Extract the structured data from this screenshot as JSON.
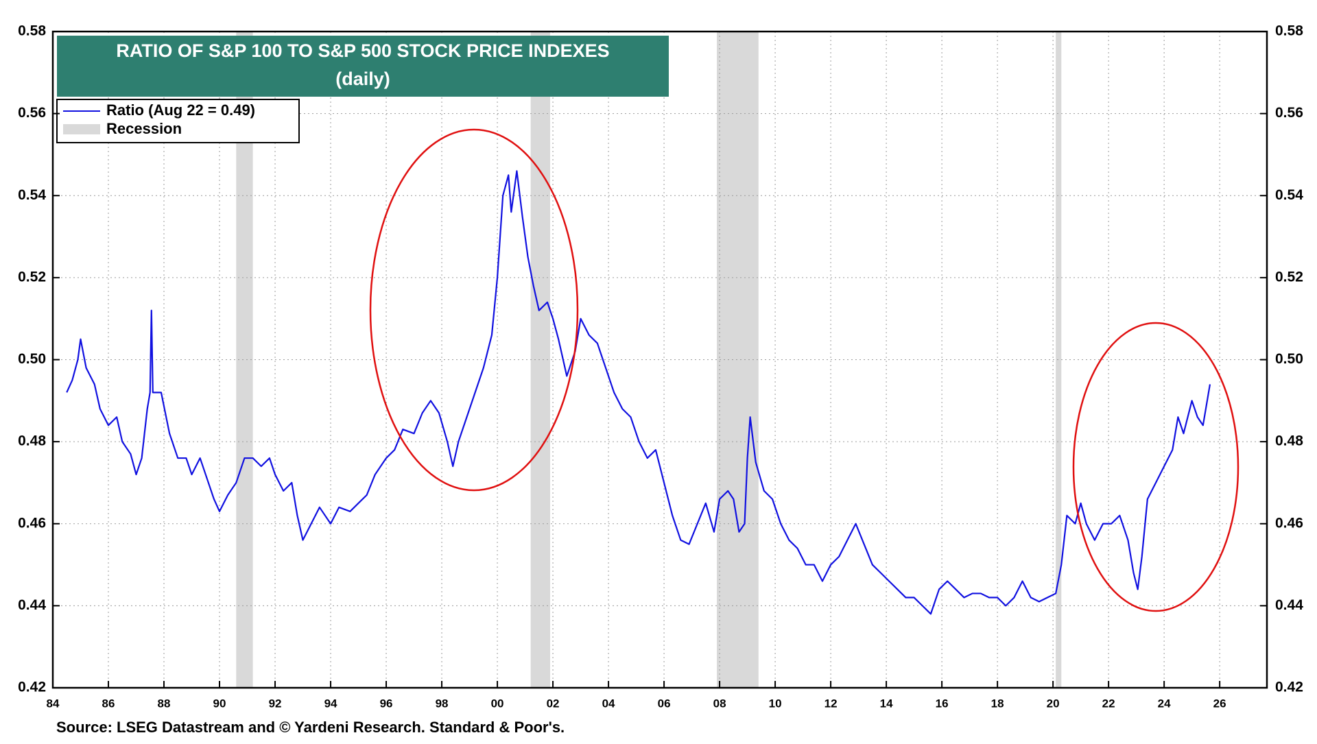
{
  "chart_data": {
    "type": "line",
    "title": "RATIO OF S&P 100 TO S&P 500 STOCK PRICE INDEXES",
    "subtitle": "(daily)",
    "source": "Source: LSEG Datastream and © Yardeni Research. Standard & Poor's.",
    "x": [
      1984.5,
      1984.7,
      1984.9,
      1985.0,
      1985.2,
      1985.5,
      1985.7,
      1986.0,
      1986.3,
      1986.5,
      1986.8,
      1987.0,
      1987.2,
      1987.4,
      1987.5,
      1987.55,
      1987.6,
      1987.9,
      1988.2,
      1988.5,
      1988.8,
      1989.0,
      1989.3,
      1989.6,
      1989.8,
      1990.0,
      1990.3,
      1990.6,
      1990.9,
      1991.2,
      1991.5,
      1991.8,
      1992.0,
      1992.3,
      1992.6,
      1992.8,
      1993.0,
      1993.3,
      1993.6,
      1994.0,
      1994.3,
      1994.7,
      1995.0,
      1995.3,
      1995.6,
      1996.0,
      1996.3,
      1996.6,
      1997.0,
      1997.3,
      1997.6,
      1997.9,
      1998.2,
      1998.4,
      1998.6,
      1998.9,
      1999.2,
      1999.5,
      1999.8,
      2000.0,
      2000.2,
      2000.4,
      2000.5,
      2000.7,
      2000.9,
      2001.1,
      2001.3,
      2001.5,
      2001.8,
      2002.0,
      2002.2,
      2002.5,
      2002.8,
      2003.0,
      2003.3,
      2003.6,
      2003.9,
      2004.2,
      2004.5,
      2004.8,
      2005.1,
      2005.4,
      2005.7,
      2006.0,
      2006.3,
      2006.6,
      2006.9,
      2007.2,
      2007.5,
      2007.8,
      2008.0,
      2008.3,
      2008.5,
      2008.7,
      2008.9,
      2009.0,
      2009.1,
      2009.3,
      2009.6,
      2009.9,
      2010.2,
      2010.5,
      2010.8,
      2011.1,
      2011.4,
      2011.7,
      2012.0,
      2012.3,
      2012.6,
      2012.9,
      2013.2,
      2013.5,
      2013.8,
      2014.1,
      2014.4,
      2014.7,
      2015.0,
      2015.3,
      2015.6,
      2015.9,
      2016.2,
      2016.5,
      2016.8,
      2017.1,
      2017.4,
      2017.7,
      2018.0,
      2018.3,
      2018.6,
      2018.9,
      2019.2,
      2019.5,
      2019.8,
      2020.1,
      2020.3,
      2020.5,
      2020.8,
      2021.0,
      2021.2,
      2021.5,
      2021.8,
      2022.1,
      2022.4,
      2022.7,
      2022.9,
      2023.05,
      2023.2,
      2023.4,
      2023.7,
      2024.0,
      2024.3,
      2024.5,
      2024.7,
      2025.0,
      2025.2,
      2025.4,
      2025.65
    ],
    "series": [
      {
        "name": "Ratio (Aug 22 = 0.49)",
        "color": "#1010e0",
        "values": [
          0.492,
          0.495,
          0.5,
          0.505,
          0.498,
          0.494,
          0.488,
          0.484,
          0.486,
          0.48,
          0.477,
          0.472,
          0.476,
          0.488,
          0.492,
          0.512,
          0.492,
          0.492,
          0.482,
          0.476,
          0.476,
          0.472,
          0.476,
          0.47,
          0.466,
          0.463,
          0.467,
          0.47,
          0.476,
          0.476,
          0.474,
          0.476,
          0.472,
          0.468,
          0.47,
          0.462,
          0.456,
          0.46,
          0.464,
          0.46,
          0.464,
          0.463,
          0.465,
          0.467,
          0.472,
          0.476,
          0.478,
          0.483,
          0.482,
          0.487,
          0.49,
          0.487,
          0.48,
          0.474,
          0.48,
          0.486,
          0.492,
          0.498,
          0.506,
          0.52,
          0.54,
          0.545,
          0.536,
          0.546,
          0.535,
          0.525,
          0.518,
          0.512,
          0.514,
          0.51,
          0.505,
          0.496,
          0.502,
          0.51,
          0.506,
          0.504,
          0.498,
          0.492,
          0.488,
          0.486,
          0.48,
          0.476,
          0.478,
          0.47,
          0.462,
          0.456,
          0.455,
          0.46,
          0.465,
          0.458,
          0.466,
          0.468,
          0.466,
          0.458,
          0.46,
          0.476,
          0.486,
          0.475,
          0.468,
          0.466,
          0.46,
          0.456,
          0.454,
          0.45,
          0.45,
          0.446,
          0.45,
          0.452,
          0.456,
          0.46,
          0.455,
          0.45,
          0.448,
          0.446,
          0.444,
          0.442,
          0.442,
          0.44,
          0.438,
          0.444,
          0.446,
          0.444,
          0.442,
          0.443,
          0.443,
          0.442,
          0.442,
          0.44,
          0.442,
          0.446,
          0.442,
          0.441,
          0.442,
          0.443,
          0.45,
          0.462,
          0.46,
          0.465,
          0.46,
          0.456,
          0.46,
          0.46,
          0.462,
          0.456,
          0.448,
          0.444,
          0.452,
          0.466,
          0.47,
          0.474,
          0.478,
          0.486,
          0.482,
          0.49,
          0.486,
          0.484,
          0.494
        ]
      }
    ],
    "recession_name": "Recession",
    "recession_color": "#d9d9d9",
    "recessions": [
      [
        1990.6,
        1991.2
      ],
      [
        2001.2,
        2001.9
      ],
      [
        2007.9,
        2009.4
      ],
      [
        2020.1,
        2020.3
      ]
    ],
    "xlim": [
      1984,
      2027.7
    ],
    "xticks": [
      {
        "value": 1984,
        "label": "84"
      },
      {
        "value": 1986,
        "label": "86"
      },
      {
        "value": 1988,
        "label": "88"
      },
      {
        "value": 1990,
        "label": "90"
      },
      {
        "value": 1992,
        "label": "92"
      },
      {
        "value": 1994,
        "label": "94"
      },
      {
        "value": 1996,
        "label": "96"
      },
      {
        "value": 1998,
        "label": "98"
      },
      {
        "value": 2000,
        "label": "00"
      },
      {
        "value": 2002,
        "label": "02"
      },
      {
        "value": 2004,
        "label": "04"
      },
      {
        "value": 2006,
        "label": "06"
      },
      {
        "value": 2008,
        "label": "08"
      },
      {
        "value": 2010,
        "label": "10"
      },
      {
        "value": 2012,
        "label": "12"
      },
      {
        "value": 2014,
        "label": "14"
      },
      {
        "value": 2016,
        "label": "16"
      },
      {
        "value": 2018,
        "label": "18"
      },
      {
        "value": 2020,
        "label": "20"
      },
      {
        "value": 2022,
        "label": "22"
      },
      {
        "value": 2024,
        "label": "24"
      },
      {
        "value": 2026,
        "label": "26"
      }
    ],
    "ylim": [
      0.42,
      0.58
    ],
    "yticks": [
      0.42,
      0.44,
      0.46,
      0.48,
      {
        "value": 0.5,
        "label": "0.50"
      },
      0.52,
      0.54,
      0.56,
      0.58
    ],
    "grid": true
  }
}
